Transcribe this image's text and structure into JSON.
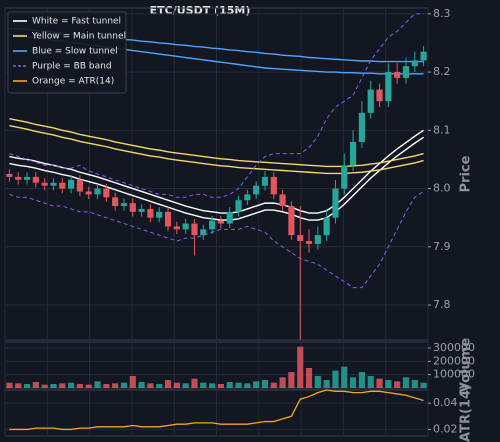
{
  "chart_data": [
    {
      "type": "candlestick",
      "title": "ETC/USDT (15M)",
      "y_label": "Price",
      "up_color": "#26a69a",
      "down_color": "#e0575f",
      "open": [
        8.025,
        8.02,
        8.015,
        8.02,
        8.01,
        8.005,
        8.01,
        8.0,
        8.015,
        7.995,
        7.99,
        8.0,
        7.985,
        7.97,
        7.975,
        7.96,
        7.965,
        7.95,
        7.96,
        7.935,
        7.93,
        7.94,
        7.92,
        7.93,
        7.945,
        7.94,
        7.96,
        7.98,
        7.99,
        8.005,
        8.02,
        7.99,
        7.97,
        7.92,
        7.91,
        7.905,
        7.92,
        7.95,
        8.0,
        8.04,
        8.08,
        8.13,
        8.17,
        8.15,
        8.2,
        8.19,
        8.21,
        8.22
      ],
      "high": [
        8.033,
        8.028,
        8.028,
        8.028,
        8.018,
        8.018,
        8.018,
        8.023,
        8.023,
        8.003,
        8.008,
        8.008,
        7.993,
        7.983,
        7.983,
        7.973,
        7.973,
        7.968,
        7.968,
        7.943,
        7.948,
        7.948,
        7.938,
        7.953,
        7.953,
        7.968,
        7.988,
        7.998,
        8.013,
        8.03,
        8.028,
        7.998,
        7.978,
        7.97,
        7.93,
        7.935,
        7.965,
        8.015,
        8.06,
        8.1,
        8.15,
        8.185,
        8.18,
        8.215,
        8.215,
        8.225,
        8.235,
        8.245
      ],
      "low": [
        8.012,
        8.007,
        8.007,
        8.002,
        7.997,
        7.997,
        7.992,
        7.992,
        7.987,
        7.982,
        7.982,
        7.977,
        7.962,
        7.962,
        7.952,
        7.952,
        7.942,
        7.942,
        7.927,
        7.922,
        7.922,
        7.885,
        7.912,
        7.922,
        7.932,
        7.932,
        7.952,
        7.972,
        7.982,
        7.997,
        7.982,
        7.962,
        7.912,
        7.74,
        7.89,
        7.895,
        7.91,
        7.94,
        7.99,
        8.03,
        8.07,
        8.12,
        8.14,
        8.14,
        8.18,
        8.18,
        8.2,
        8.21
      ],
      "close": [
        8.02,
        8.015,
        8.02,
        8.01,
        8.005,
        8.01,
        8.0,
        8.015,
        7.995,
        7.99,
        8.0,
        7.985,
        7.97,
        7.975,
        7.96,
        7.965,
        7.95,
        7.96,
        7.935,
        7.93,
        7.94,
        7.92,
        7.93,
        7.945,
        7.94,
        7.96,
        7.98,
        7.99,
        8.005,
        8.02,
        7.99,
        7.97,
        7.92,
        7.91,
        7.905,
        7.92,
        7.95,
        8.0,
        8.04,
        8.08,
        8.13,
        8.17,
        8.15,
        8.2,
        8.19,
        8.21,
        8.22,
        8.235
      ],
      "series": [
        {
          "name": "White = Fast tunnel",
          "color": "#ffffff",
          "dashed": false,
          "upper": [
            8.055,
            8.052,
            8.05,
            8.047,
            8.043,
            8.04,
            8.036,
            8.033,
            8.028,
            8.024,
            8.02,
            8.015,
            8.01,
            8.005,
            8.0,
            7.995,
            7.99,
            7.985,
            7.98,
            7.975,
            7.97,
            7.966,
            7.962,
            7.96,
            7.958,
            7.958,
            7.96,
            7.965,
            7.97,
            7.975,
            7.975,
            7.972,
            7.968,
            7.962,
            7.958,
            7.958,
            7.962,
            7.972,
            7.985,
            8.0,
            8.015,
            8.03,
            8.043,
            8.056,
            8.068,
            8.079,
            8.09,
            8.1
          ],
          "lower": [
            8.043,
            8.04,
            8.038,
            8.035,
            8.031,
            8.028,
            8.024,
            8.021,
            8.016,
            8.012,
            8.008,
            8.003,
            7.998,
            7.993,
            7.988,
            7.983,
            7.978,
            7.973,
            7.968,
            7.963,
            7.958,
            7.954,
            7.95,
            7.948,
            7.946,
            7.946,
            7.948,
            7.953,
            7.958,
            7.963,
            7.963,
            7.96,
            7.956,
            7.95,
            7.946,
            7.946,
            7.95,
            7.96,
            7.973,
            7.988,
            8.003,
            8.018,
            8.031,
            8.044,
            8.056,
            8.067,
            8.078,
            8.088
          ]
        },
        {
          "name": "Yellow = Main tunnel",
          "color": "#f5d76e",
          "dashed": false,
          "upper": [
            8.12,
            8.117,
            8.114,
            8.11,
            8.107,
            8.104,
            8.1,
            8.097,
            8.093,
            8.09,
            8.087,
            8.084,
            8.08,
            8.077,
            8.074,
            8.071,
            8.068,
            8.066,
            8.063,
            8.061,
            8.059,
            8.057,
            8.055,
            8.053,
            8.051,
            8.05,
            8.048,
            8.047,
            8.046,
            8.045,
            8.044,
            8.043,
            8.042,
            8.041,
            8.04,
            8.039,
            8.038,
            8.038,
            8.038,
            8.039,
            8.04,
            8.042,
            8.044,
            8.047,
            8.05,
            8.053,
            8.056,
            8.06
          ],
          "lower": [
            8.108,
            8.105,
            8.102,
            8.098,
            8.095,
            8.092,
            8.088,
            8.085,
            8.081,
            8.078,
            8.075,
            8.072,
            8.068,
            8.065,
            8.062,
            8.059,
            8.056,
            8.054,
            8.051,
            8.049,
            8.047,
            8.045,
            8.043,
            8.041,
            8.039,
            8.038,
            8.036,
            8.035,
            8.034,
            8.033,
            8.032,
            8.031,
            8.03,
            8.029,
            8.028,
            8.027,
            8.026,
            8.026,
            8.026,
            8.027,
            8.028,
            8.03,
            8.032,
            8.035,
            8.038,
            8.041,
            8.044,
            8.048
          ]
        },
        {
          "name": "Blue = Slow tunnel",
          "color": "#4da6ff",
          "dashed": false,
          "upper": [
            8.275,
            8.274,
            8.273,
            8.271,
            8.27,
            8.268,
            8.267,
            8.265,
            8.264,
            8.262,
            8.261,
            8.259,
            8.258,
            8.256,
            8.255,
            8.253,
            8.252,
            8.25,
            8.249,
            8.247,
            8.246,
            8.244,
            8.243,
            8.241,
            8.24,
            8.238,
            8.237,
            8.235,
            8.234,
            8.232,
            8.231,
            8.229,
            8.228,
            8.227,
            8.225,
            8.224,
            8.223,
            8.222,
            8.221,
            8.22,
            8.219,
            8.219,
            8.218,
            8.218,
            8.218,
            8.218,
            8.218,
            8.218
          ],
          "lower": [
            8.265,
            8.263,
            8.261,
            8.259,
            8.257,
            8.255,
            8.253,
            8.251,
            8.249,
            8.247,
            8.245,
            8.243,
            8.241,
            8.239,
            8.237,
            8.235,
            8.233,
            8.231,
            8.229,
            8.227,
            8.225,
            8.223,
            8.221,
            8.219,
            8.217,
            8.215,
            8.213,
            8.211,
            8.209,
            8.207,
            8.206,
            8.205,
            8.204,
            8.203,
            8.202,
            8.201,
            8.2,
            8.2,
            8.199,
            8.199,
            8.198,
            8.198,
            8.197,
            8.197,
            8.197,
            8.197,
            8.197,
            8.197
          ]
        },
        {
          "name": "Purple = BB band",
          "color": "#8a5cf5",
          "dashed": true,
          "upper": [
            8.06,
            8.055,
            8.05,
            8.045,
            8.04,
            8.04,
            8.035,
            8.035,
            8.04,
            8.03,
            8.025,
            8.02,
            8.015,
            8.01,
            8.005,
            8.0,
            7.995,
            7.99,
            7.99,
            7.985,
            7.985,
            7.99,
            7.99,
            7.985,
            7.985,
            7.99,
            8.0,
            8.02,
            8.04,
            8.055,
            8.06,
            8.06,
            8.06,
            8.06,
            8.07,
            8.09,
            8.12,
            8.14,
            8.15,
            8.16,
            8.19,
            8.22,
            8.24,
            8.26,
            8.27,
            8.285,
            8.3,
            8.3
          ],
          "lower": [
            7.99,
            7.985,
            7.985,
            7.98,
            7.975,
            7.97,
            7.97,
            7.965,
            7.96,
            7.96,
            7.955,
            7.95,
            7.945,
            7.94,
            7.935,
            7.93,
            7.925,
            7.92,
            7.915,
            7.91,
            7.915,
            7.915,
            7.92,
            7.925,
            7.93,
            7.93,
            7.93,
            7.935,
            7.93,
            7.925,
            7.91,
            7.9,
            7.89,
            7.88,
            7.875,
            7.87,
            7.86,
            7.85,
            7.84,
            7.83,
            7.83,
            7.85,
            7.87,
            7.9,
            7.93,
            7.96,
            7.985,
            7.995
          ]
        }
      ],
      "ylim": [
        7.74,
        8.31
      ],
      "yticks": [
        7.8,
        7.9,
        {
          "value": 8,
          "label": "8.0"
        },
        8.1,
        8.2,
        8.3
      ],
      "grid": true
    },
    {
      "type": "bar",
      "y_label": "Volume",
      "values": [
        40000,
        35000,
        30000,
        45000,
        25000,
        30000,
        35000,
        40000,
        30000,
        25000,
        50000,
        30000,
        35000,
        40000,
        90000,
        45000,
        35000,
        30000,
        60000,
        40000,
        35000,
        70000,
        40000,
        35000,
        30000,
        45000,
        40000,
        35000,
        50000,
        60000,
        40000,
        80000,
        120000,
        310000,
        150000,
        90000,
        60000,
        130000,
        160000,
        80000,
        120000,
        90000,
        70000,
        60000,
        50000,
        80000,
        60000,
        40000
      ],
      "ylim": [
        0,
        345000
      ],
      "yticks": [
        100000,
        200000,
        300000
      ],
      "grid": true
    },
    {
      "type": "line",
      "y_label": "ATR(14)",
      "series": [
        {
          "name": "Orange = ATR(14)",
          "color": "#f5a623",
          "values": [
            0.02,
            0.02,
            0.02,
            0.021,
            0.021,
            0.021,
            0.02,
            0.02,
            0.021,
            0.021,
            0.022,
            0.022,
            0.022,
            0.022,
            0.023,
            0.022,
            0.022,
            0.022,
            0.023,
            0.024,
            0.024,
            0.025,
            0.025,
            0.025,
            0.024,
            0.024,
            0.024,
            0.024,
            0.025,
            0.026,
            0.026,
            0.028,
            0.03,
            0.043,
            0.045,
            0.048,
            0.05,
            0.049,
            0.049,
            0.048,
            0.048,
            0.049,
            0.049,
            0.048,
            0.047,
            0.046,
            0.044,
            0.042
          ]
        }
      ],
      "ylim": [
        0.015,
        0.05
      ],
      "yticks": [
        0.02,
        0.04
      ],
      "grid": true
    }
  ]
}
